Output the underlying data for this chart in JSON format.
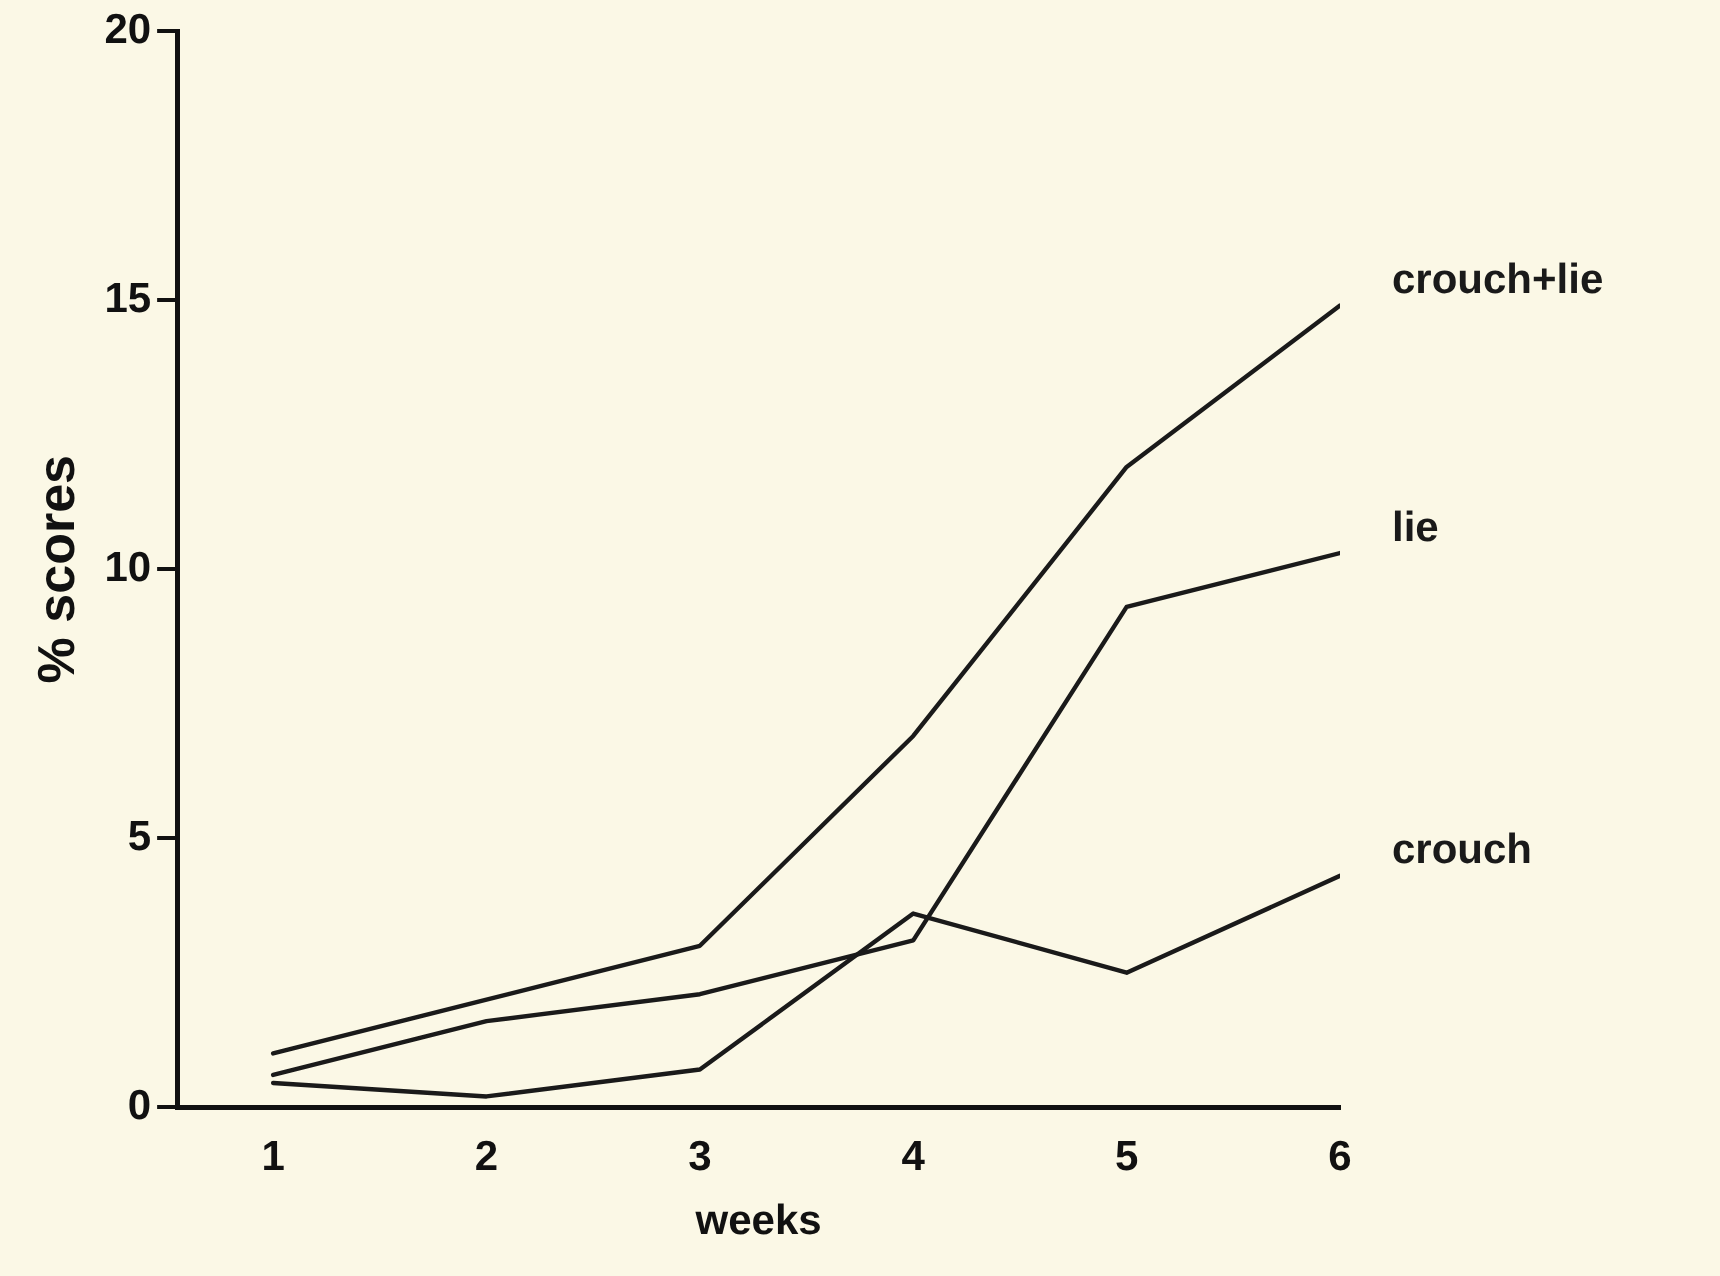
{
  "chart_data": {
    "type": "line",
    "xlabel": "weeks",
    "ylabel": "% scores",
    "x": [
      1,
      2,
      3,
      4,
      5,
      6
    ],
    "xlim": [
      0.55,
      6
    ],
    "xticks": [
      1,
      2,
      3,
      4,
      5,
      6
    ],
    "ylim": [
      0,
      20
    ],
    "yticks": [
      0,
      5,
      10,
      15,
      20
    ],
    "grid": false,
    "legend": false,
    "marker": "none",
    "line_style": "solid",
    "series": [
      {
        "name": "crouch+lie",
        "color": "#1a1a1a",
        "values": [
          1.0,
          2.0,
          3.0,
          6.9,
          11.9,
          14.9
        ]
      },
      {
        "name": "lie",
        "color": "#1a1a1a",
        "values": [
          0.6,
          1.6,
          2.1,
          3.1,
          9.3,
          10.3
        ]
      },
      {
        "name": "crouch",
        "color": "#1a1a1a",
        "values": [
          0.45,
          0.2,
          0.7,
          3.6,
          2.5,
          4.3
        ]
      }
    ]
  }
}
